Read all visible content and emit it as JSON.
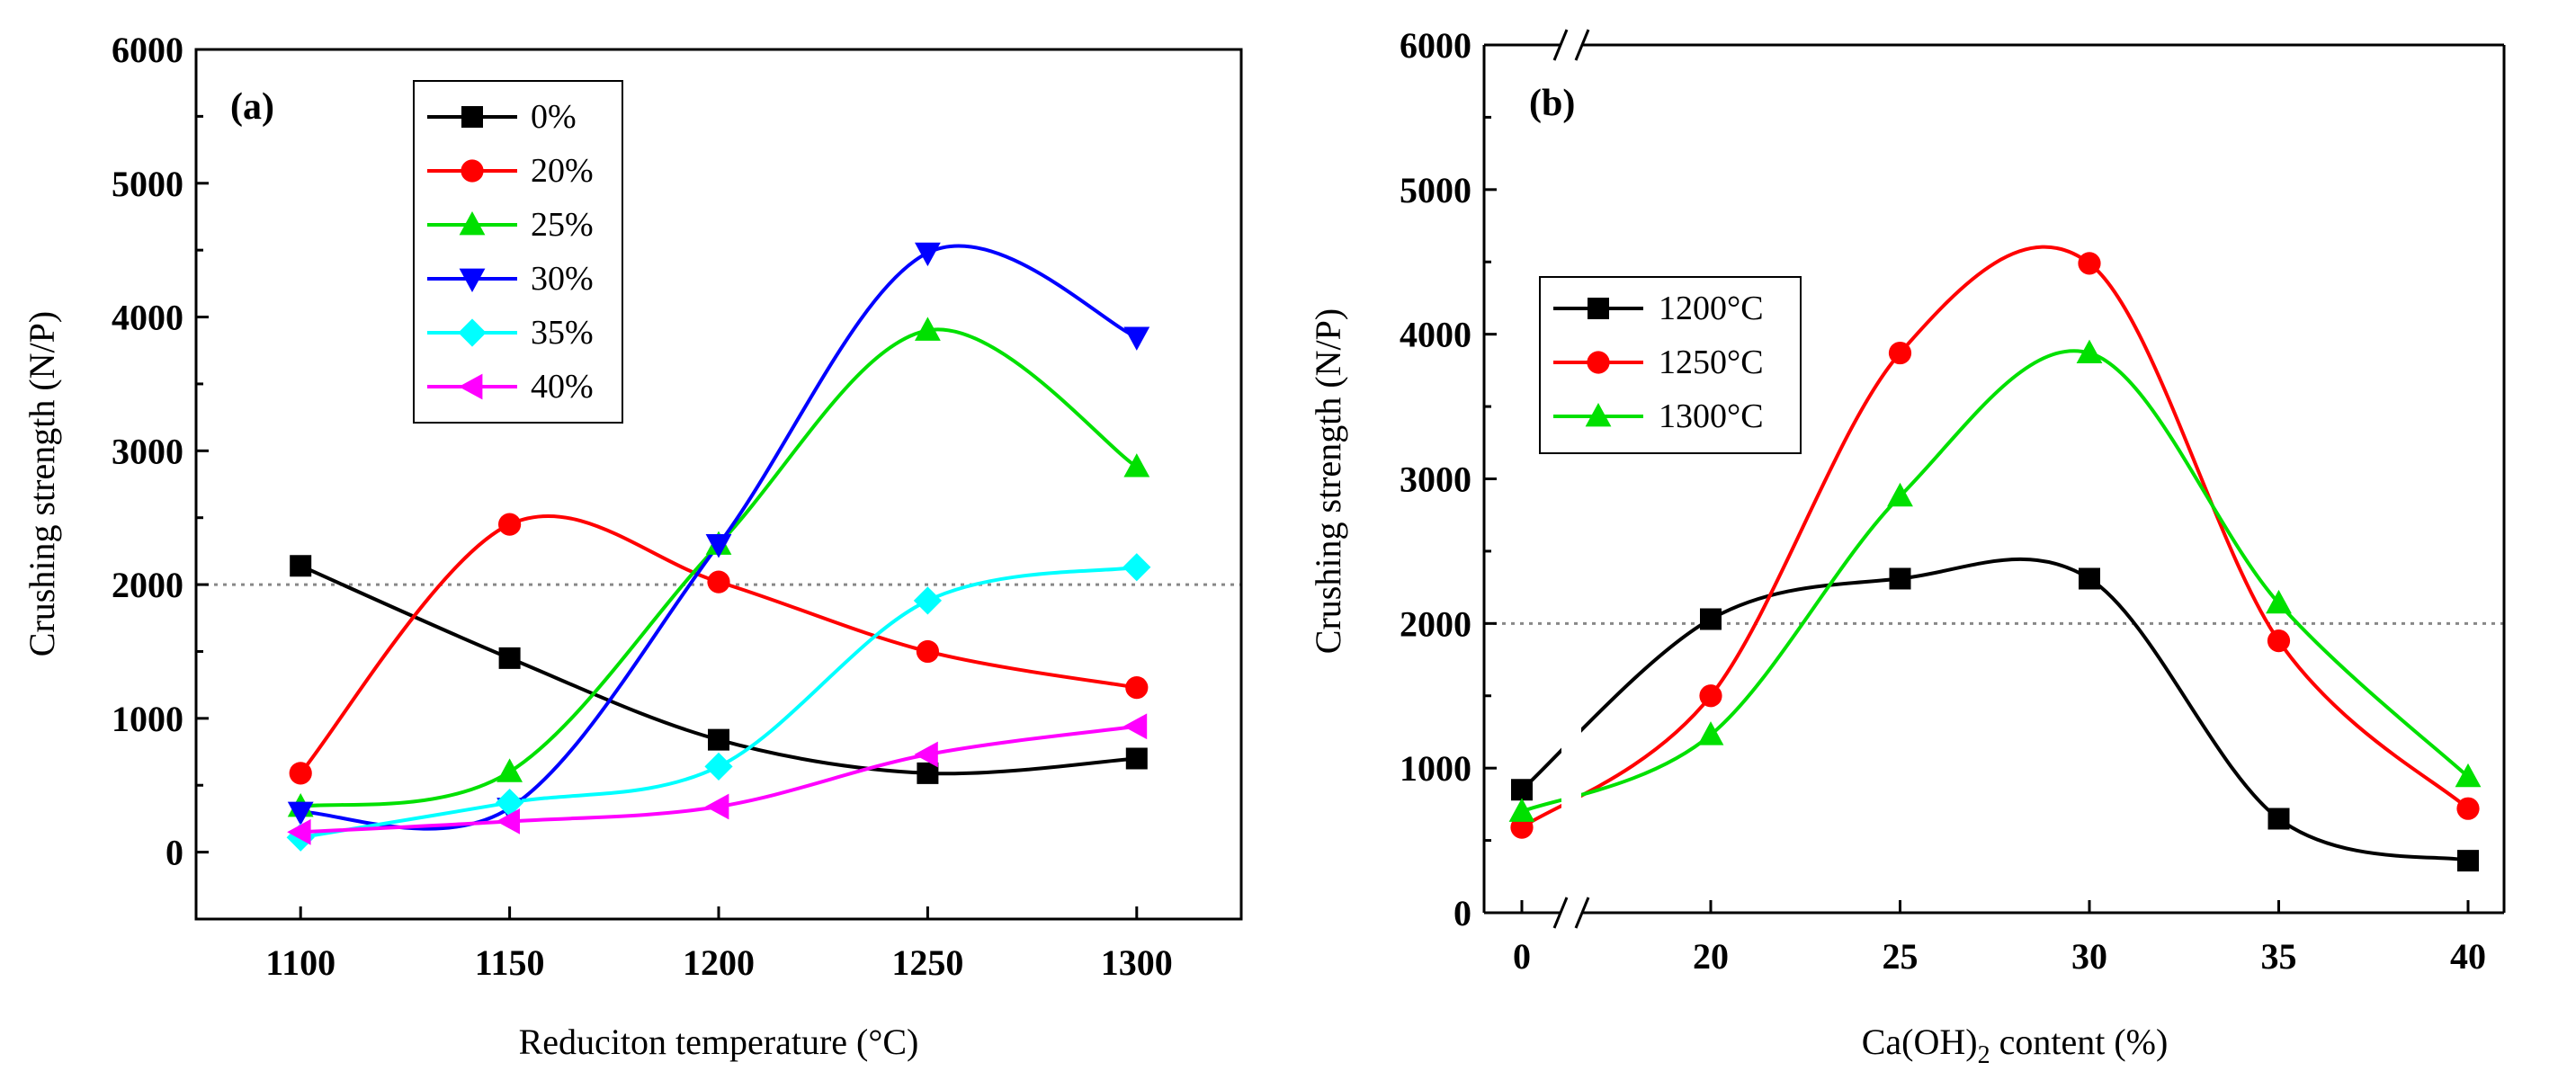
{
  "chart_data": [
    {
      "type": "line",
      "panel_label": "(a)",
      "xlabel": "Reduciton temperature (°C)",
      "ylabel": "Crushing strength (N/P)",
      "x": [
        1100,
        1150,
        1200,
        1250,
        1300
      ],
      "x_ticks": [
        "1100",
        "1150",
        "1200",
        "1250",
        "1300"
      ],
      "xlim": [
        1075,
        1325
      ],
      "ylim": [
        -500,
        6000
      ],
      "y_ticks": [
        "0",
        "1000",
        "2000",
        "3000",
        "4000",
        "5000",
        "6000"
      ],
      "reference_line": 2000,
      "legend_position": "top-center",
      "series": [
        {
          "name": "0%",
          "color": "#000000",
          "marker": "square",
          "values": [
            2140,
            1450,
            840,
            590,
            700
          ]
        },
        {
          "name": "20%",
          "color": "#ff0000",
          "marker": "circle",
          "values": [
            590,
            2450,
            2020,
            1500,
            1230
          ]
        },
        {
          "name": "25%",
          "color": "#00e000",
          "marker": "triangle-up",
          "values": [
            340,
            600,
            2300,
            3900,
            2880
          ]
        },
        {
          "name": "30%",
          "color": "#0000ff",
          "marker": "triangle-down",
          "values": [
            300,
            330,
            2300,
            4480,
            3850
          ]
        },
        {
          "name": "35%",
          "color": "#00ffff",
          "marker": "diamond",
          "values": [
            110,
            370,
            640,
            1880,
            2130
          ]
        },
        {
          "name": "40%",
          "color": "#ff00ff",
          "marker": "triangle-left",
          "values": [
            150,
            230,
            340,
            730,
            940
          ]
        }
      ]
    },
    {
      "type": "line",
      "panel_label": "(b)",
      "xlabel_prefix": "Ca(OH)",
      "xlabel_subscript": "2",
      "xlabel_suffix": " content (%)",
      "ylabel": "Crushing strength (N/P)",
      "x": [
        0,
        20,
        25,
        30,
        35,
        40
      ],
      "x_ticks": [
        "0",
        "20",
        "25",
        "30",
        "35",
        "40"
      ],
      "ylim": [
        0,
        6000
      ],
      "y_ticks": [
        "0",
        "1000",
        "2000",
        "3000",
        "4000",
        "5000",
        "6000"
      ],
      "axis_break": "between 0 and 20",
      "reference_line": 2000,
      "legend_position": "left",
      "series": [
        {
          "name": "1200°C",
          "color": "#000000",
          "marker": "square",
          "values": [
            850,
            2030,
            2310,
            2310,
            650,
            360
          ]
        },
        {
          "name": "1250°C",
          "color": "#ff0000",
          "marker": "circle",
          "values": [
            590,
            1500,
            3870,
            4490,
            1880,
            720
          ]
        },
        {
          "name": "1300°C",
          "color": "#00e000",
          "marker": "triangle-up",
          "values": [
            700,
            1230,
            2880,
            3870,
            2140,
            940
          ]
        }
      ]
    }
  ]
}
